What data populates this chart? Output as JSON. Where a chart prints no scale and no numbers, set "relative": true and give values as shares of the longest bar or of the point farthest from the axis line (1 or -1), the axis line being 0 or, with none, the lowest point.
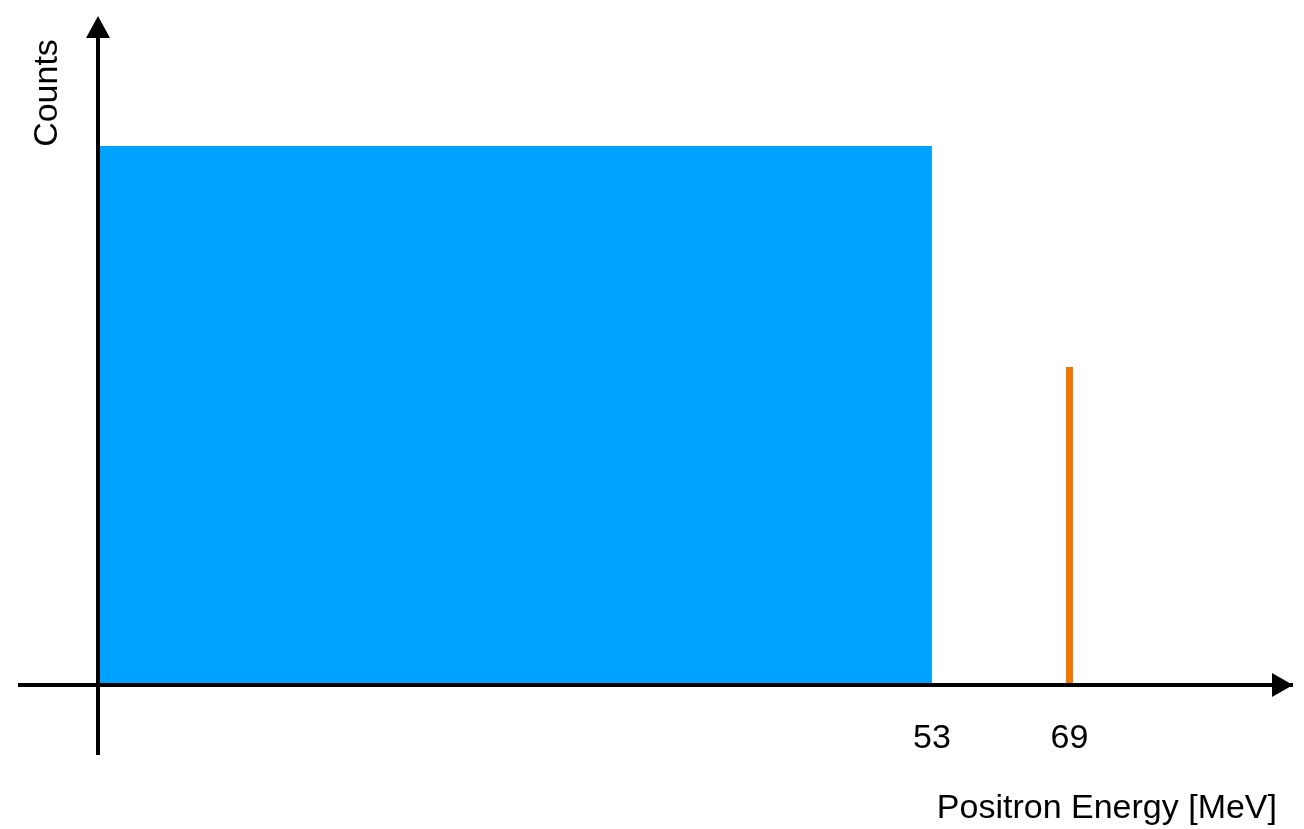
{
  "chart_data": {
    "type": "histogram",
    "xlabel": "Positron Energy [MeV]",
    "ylabel": "Counts",
    "relative": true,
    "xlim": [
      -44,
      95
    ],
    "xticks": [
      53,
      69
    ],
    "grid": false,
    "series": [
      {
        "bins": [
          -44,
          53
        ],
        "values": [
          1
        ],
        "color": "#00a2ff"
      },
      {
        "type": "bar",
        "x": [
          69
        ],
        "values": [
          0.59
        ],
        "color": "#f07800"
      }
    ]
  }
}
